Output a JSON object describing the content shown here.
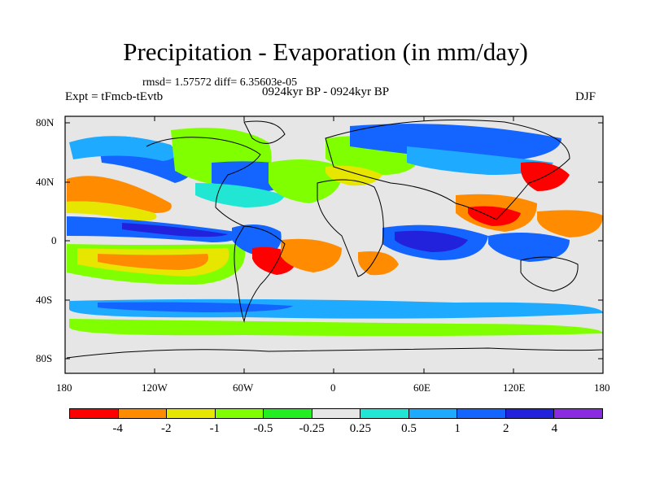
{
  "figure": {
    "title": "Precipitation - Evaporation (in mm/day)",
    "stats": "rmsd= 1.57572  diff= 6.35603e-05",
    "left_label": "Expt = tFmcb-tEvtb",
    "center_label": "0924kyr BP - 0924kyr BP",
    "right_label": "DJF"
  },
  "axes": {
    "y_ticks": [
      "80N",
      "40N",
      "0",
      "40S",
      "80S"
    ],
    "x_ticks": [
      "180",
      "120W",
      "60W",
      "0",
      "60E",
      "120E",
      "180"
    ]
  },
  "colorbar": {
    "colors": [
      "#ff0000",
      "#ff8c00",
      "#e6e600",
      "#80ff00",
      "#22ee22",
      "#e6e6e6",
      "#22e6d4",
      "#1eaaff",
      "#1464ff",
      "#2222dd",
      "#8a2be2"
    ],
    "labels": [
      "-4",
      "-2",
      "-1",
      "-0.5",
      "-0.25",
      "0.25",
      "0.5",
      "1",
      "2",
      "4"
    ]
  },
  "chart_data": {
    "type": "heatmap",
    "title": "Precipitation - Evaporation (in mm/day)",
    "units": "mm/day",
    "xlim": [
      -180,
      180
    ],
    "ylim": [
      -90,
      90
    ],
    "x_ticks": [
      "180",
      "120W",
      "60W",
      "0",
      "60E",
      "120E",
      "180"
    ],
    "y_ticks": [
      "80N",
      "40N",
      "0",
      "40S",
      "80S"
    ],
    "contour_levels": [
      -4,
      -2,
      -1,
      -0.5,
      -0.25,
      0.25,
      0.5,
      1,
      2,
      4
    ],
    "background": "#e6e6e6"
  }
}
